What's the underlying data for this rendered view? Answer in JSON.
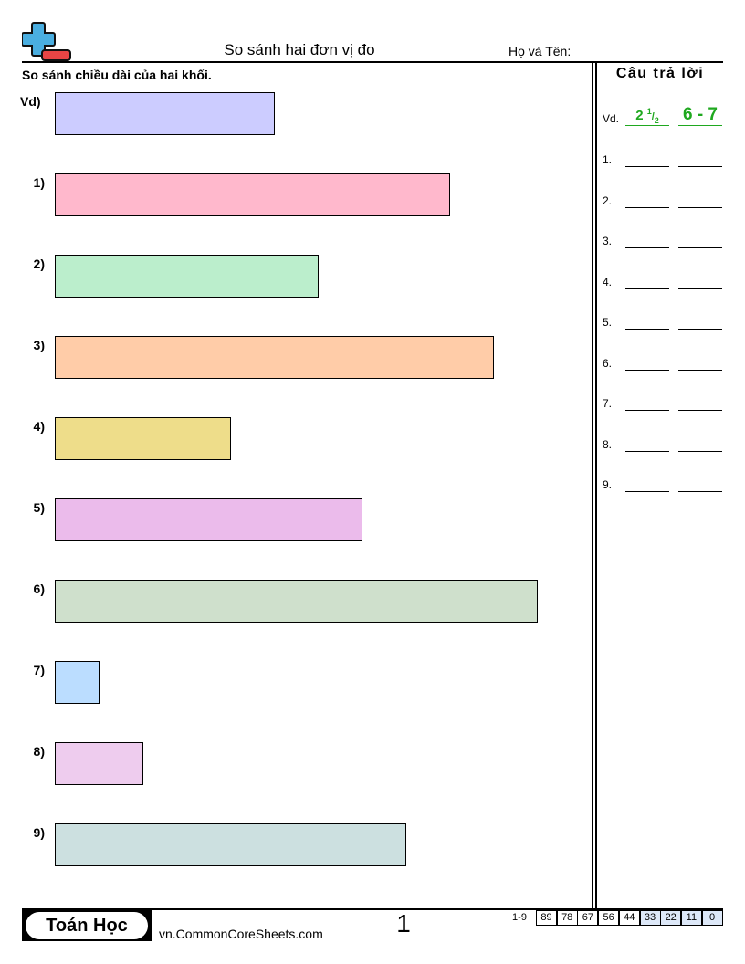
{
  "header": {
    "title": "So sánh hai đơn vị đo",
    "name_label": "Họ và Tên:"
  },
  "instructions": "So sánh chiều dài của hai khối.",
  "colors": {
    "answer_green": "#1fa81f"
  },
  "questions": [
    {
      "label": "Vd)",
      "length_units": 5,
      "color": "#ccccff"
    },
    {
      "label": "1)",
      "length_units": 9,
      "color": "#ffb8cc"
    },
    {
      "label": "2)",
      "length_units": 6,
      "color": "#bbeecc"
    },
    {
      "label": "3)",
      "length_units": 10,
      "color": "#ffcca8"
    },
    {
      "label": "4)",
      "length_units": 4,
      "color": "#eedd8a"
    },
    {
      "label": "5)",
      "length_units": 7,
      "color": "#ebbbeb"
    },
    {
      "label": "6)",
      "length_units": 11,
      "color": "#cfe0cc"
    },
    {
      "label": "7)",
      "length_units": 1,
      "color": "#bbddff"
    },
    {
      "label": "8)",
      "length_units": 2,
      "color": "#eeccee"
    },
    {
      "label": "9)",
      "length_units": 8,
      "color": "#cce0e0"
    }
  ],
  "answers": {
    "heading": "Câu trả lời",
    "example": {
      "label": "Vd.",
      "whole": "2",
      "num": "1",
      "den": "2",
      "range": "6 - 7"
    },
    "items": [
      "1.",
      "2.",
      "3.",
      "4.",
      "5.",
      "6.",
      "7.",
      "8.",
      "9."
    ]
  },
  "footer": {
    "brand": "Toán Học",
    "site": "vn.CommonCoreSheets.com",
    "page": "1",
    "score_label": "1-9",
    "scores": [
      "89",
      "78",
      "67",
      "56",
      "44",
      "33",
      "22",
      "11",
      "0"
    ]
  }
}
